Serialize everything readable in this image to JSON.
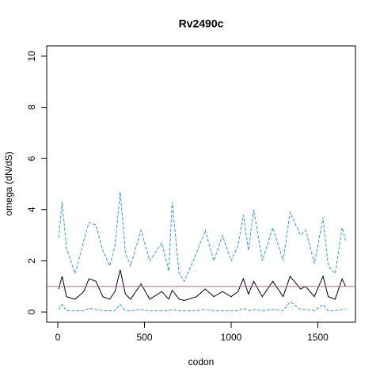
{
  "chart_data": {
    "type": "line",
    "title": "Rv2490c",
    "xlabel": "codon",
    "ylabel": "omega (dN/dS)",
    "x": [
      5,
      25,
      50,
      100,
      150,
      180,
      220,
      260,
      300,
      330,
      360,
      390,
      420,
      480,
      530,
      600,
      640,
      660,
      700,
      730,
      800,
      850,
      900,
      950,
      1000,
      1040,
      1070,
      1100,
      1130,
      1180,
      1240,
      1300,
      1340,
      1400,
      1430,
      1480,
      1530,
      1560,
      1600,
      1640,
      1660
    ],
    "series": [
      {
        "color": "#2b9ae0",
        "dashed": true,
        "values": [
          2.9,
          4.3,
          2.5,
          1.5,
          2.8,
          3.5,
          3.4,
          2.4,
          1.8,
          2.6,
          4.7,
          2.3,
          1.8,
          3.2,
          2.0,
          2.7,
          1.6,
          4.3,
          1.5,
          1.2,
          2.3,
          3.2,
          2.0,
          3.0,
          2.0,
          2.6,
          3.8,
          2.4,
          4.0,
          2.0,
          3.3,
          2.0,
          3.9,
          3.0,
          3.2,
          1.9,
          3.7,
          1.8,
          1.5,
          3.3,
          2.8
        ]
      },
      {
        "color": "#000000",
        "dashed": false,
        "values": [
          0.9,
          1.4,
          0.6,
          0.5,
          0.8,
          1.3,
          1.2,
          0.6,
          0.5,
          0.8,
          1.65,
          0.7,
          0.5,
          1.1,
          0.5,
          0.8,
          0.5,
          0.85,
          0.5,
          0.45,
          0.6,
          0.9,
          0.6,
          0.8,
          0.6,
          0.8,
          1.3,
          0.7,
          1.2,
          0.6,
          1.2,
          0.6,
          1.4,
          0.9,
          1.0,
          0.6,
          1.4,
          0.6,
          0.5,
          1.3,
          1.0
        ]
      },
      {
        "color": "#2b9ae0",
        "dashed": true,
        "values": [
          0.1,
          0.3,
          0.05,
          0.05,
          0.05,
          0.15,
          0.1,
          0.05,
          0.05,
          0.05,
          0.3,
          0.05,
          0.05,
          0.1,
          0.05,
          0.05,
          0.05,
          0.1,
          0.05,
          0.05,
          0.05,
          0.1,
          0.05,
          0.05,
          0.05,
          0.05,
          0.15,
          0.05,
          0.1,
          0.05,
          0.1,
          0.05,
          0.4,
          0.1,
          0.1,
          0.05,
          0.3,
          0.05,
          0.05,
          0.1,
          0.1
        ]
      }
    ],
    "hline": {
      "value": 1,
      "color": "#cc6699"
    },
    "xlim": [
      -64,
      1717
    ],
    "ylim": [
      -0.4,
      10.4
    ],
    "xticks": [
      0,
      500,
      1000,
      1500
    ],
    "yticks": [
      0,
      2,
      4,
      6,
      8,
      10
    ]
  }
}
